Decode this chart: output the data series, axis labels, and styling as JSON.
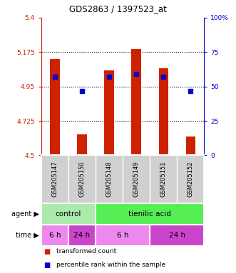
{
  "title": "GDS2863 / 1397523_at",
  "samples": [
    "GSM205147",
    "GSM205150",
    "GSM205148",
    "GSM205149",
    "GSM205151",
    "GSM205152"
  ],
  "bar_values": [
    5.13,
    4.635,
    5.055,
    5.195,
    5.07,
    4.625
  ],
  "bar_bottom": 4.5,
  "percentile_right_vals": [
    57,
    47,
    57,
    59,
    57,
    47
  ],
  "ylim_left": [
    4.5,
    5.4
  ],
  "ylim_right": [
    0,
    100
  ],
  "left_ticks": [
    4.5,
    4.725,
    4.95,
    5.175,
    5.4
  ],
  "right_ticks": [
    0,
    25,
    50,
    75,
    100
  ],
  "left_tick_labels": [
    "4.5",
    "4.725",
    "4.95",
    "5.175",
    "5.4"
  ],
  "right_tick_labels": [
    "0",
    "25",
    "50",
    "75",
    "100%"
  ],
  "bar_color": "#cc2200",
  "percentile_color": "#0000cc",
  "bar_width": 0.35,
  "plot_bg_color": "#ffffff",
  "left_axis_color": "#cc2200",
  "right_axis_color": "#0000cc",
  "agent_color_control": "#aaeaaa",
  "agent_color_tienilic": "#55ee55",
  "time_color_6h": "#ee88ee",
  "time_color_24h": "#cc44cc",
  "sample_bg_color": "#d0d0d0",
  "separator_color": "#ffffff"
}
